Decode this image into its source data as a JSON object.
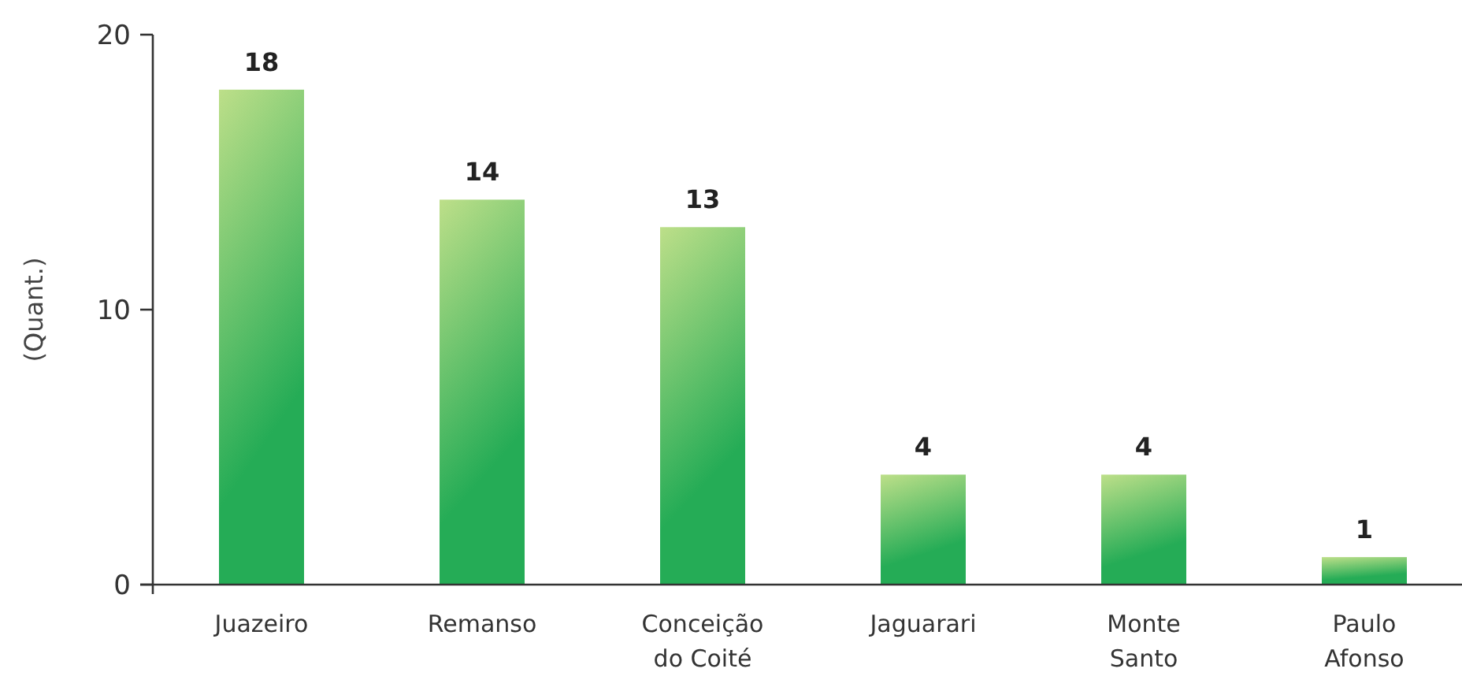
{
  "chart_data": {
    "type": "bar",
    "ylabel": "(Quant.)",
    "categories": [
      "Juazeiro",
      "Remanso",
      "Conceição do Coité",
      "Jaguarari",
      "Monte Santo",
      "Paulo Afonso"
    ],
    "values": [
      18,
      14,
      13,
      4,
      4,
      1
    ],
    "color": "#5cbf60",
    "ylim": [
      0,
      20
    ],
    "yticks": [
      0,
      10,
      20
    ],
    "data_labels": true
  }
}
